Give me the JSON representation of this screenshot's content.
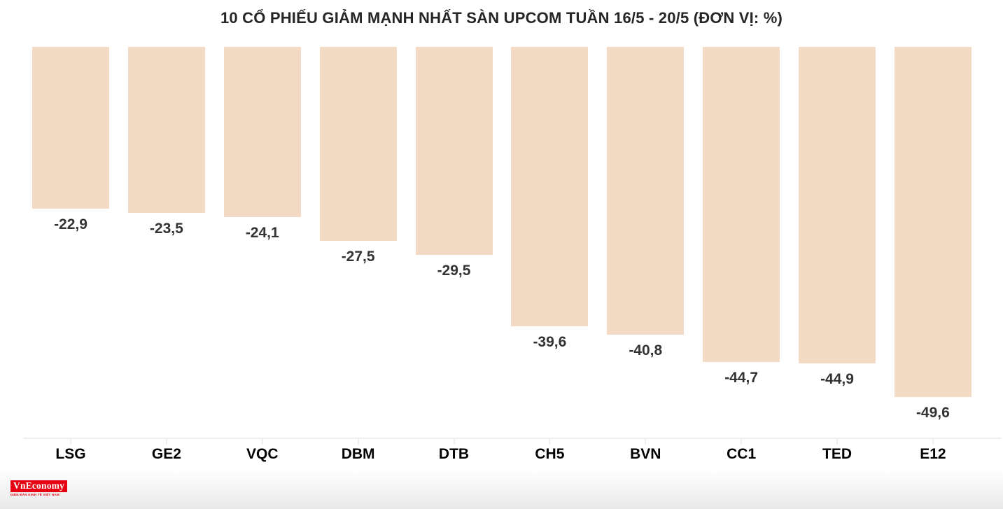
{
  "chart_data": {
    "type": "bar",
    "title": "10 CỔ PHIẾU GIẢM MẠNH NHẤT SÀN UPCOM TUẦN 16/5 - 20/5 (ĐƠN VỊ: %)",
    "unit": "%",
    "categories": [
      "LSG",
      "GE2",
      "VQC",
      "DBM",
      "DTB",
      "CH5",
      "BVN",
      "CC1",
      "TED",
      "E12"
    ],
    "values": [
      -22.9,
      -23.5,
      -24.1,
      -27.5,
      -29.5,
      -39.6,
      -40.8,
      -44.7,
      -44.9,
      -49.6
    ],
    "value_labels": [
      "-22,9",
      "-23,5",
      "-24,1",
      "-27,5",
      "-29,5",
      "-39,6",
      "-40,8",
      "-44,7",
      "-44,9",
      "-49,6"
    ],
    "xlabel": "",
    "ylabel": "",
    "ylim": [
      0,
      -55.6
    ],
    "grid": false,
    "legend": false,
    "bars_hang_from_top": true,
    "bar_color": "#f2dac5",
    "axis_color": "#eeeeee",
    "value_label_color": "#333333",
    "category_label_color": "#000000",
    "title_color": "#262626"
  },
  "footer": {
    "logo_text": "VnEconomy",
    "tagline": "DIỄN ĐÀN KINH TẾ VIỆT NAM VÀ THẾ GIỚI",
    "logo_bg_color": "#e60012"
  }
}
